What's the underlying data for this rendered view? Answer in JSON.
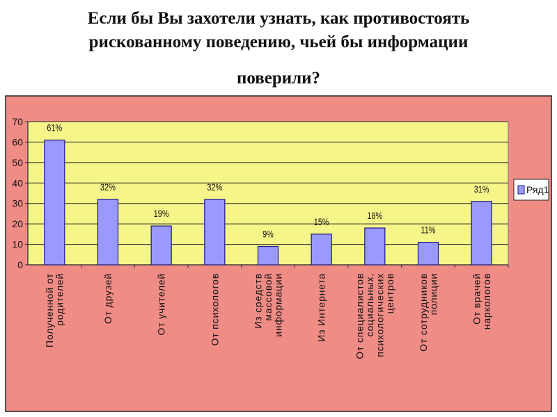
{
  "title": {
    "line1": "Если бы Вы захотели узнать, как противостоять",
    "line2": "рискованному поведению, чьей бы информации",
    "line3": "поверили?"
  },
  "colors": {
    "outer_background": "#F08C86",
    "plot_background": "#F5F58A",
    "bar_fill": "#9999FF",
    "bar_stroke": "#1A1A80",
    "text": "#111111"
  },
  "chart_data": {
    "type": "bar",
    "categories": [
      [
        "Полученной от",
        "родителей"
      ],
      [
        "От друзей"
      ],
      [
        "От учителей"
      ],
      [
        "От психологов"
      ],
      [
        "Из средств",
        "массовой",
        "информации"
      ],
      [
        "Из Интернета"
      ],
      [
        "От специалистов",
        "социальных,",
        "психологических",
        "центров"
      ],
      [
        "От сотрудников",
        "полиции"
      ],
      [
        "От врачей",
        "наркологов"
      ]
    ],
    "series": [
      {
        "name": "Ряд1",
        "values": [
          61,
          32,
          19,
          32,
          9,
          15,
          18,
          11,
          31
        ],
        "labels": [
          "61%",
          "32%",
          "19%",
          "32%",
          "9%",
          "15%",
          "18%",
          "11%",
          "31%"
        ]
      }
    ],
    "ylim": [
      0,
      70
    ],
    "yticks": [
      0,
      10,
      20,
      30,
      40,
      50,
      60,
      70
    ],
    "grid": true,
    "legend_position": "right",
    "xlabel": "",
    "ylabel": ""
  }
}
